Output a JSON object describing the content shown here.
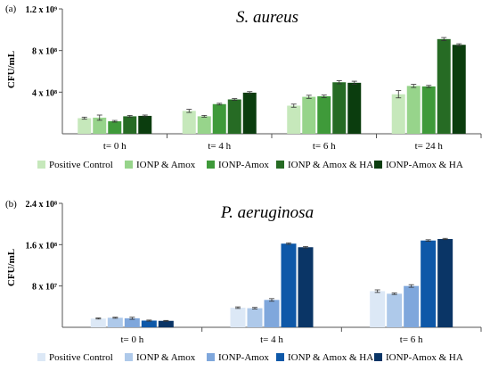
{
  "figure": {
    "panels_label": [
      "(a)",
      "(b)"
    ]
  },
  "chart_data": [
    {
      "type": "bar",
      "panel": "(a)",
      "title": "S. aureus",
      "xlabel": "",
      "ylabel": "CFU/mL",
      "ylim": [
        0,
        1200000000
      ],
      "yticks": [
        {
          "value": 400000000,
          "label": "4 x 10⁸"
        },
        {
          "value": 800000000,
          "label": "8 x 10⁸"
        },
        {
          "value": 1200000000,
          "label": "1.2 x 10⁹"
        }
      ],
      "categories": [
        "t= 0 h",
        "t= 4 h",
        "t= 6 h",
        "t= 24 h"
      ],
      "legend_position": "bottom",
      "series": [
        {
          "name": "Positive Control",
          "color": "#c6e8bb",
          "values": [
            150000000,
            220000000,
            270000000,
            380000000
          ],
          "errors": [
            10000000,
            15000000,
            15000000,
            35000000
          ]
        },
        {
          "name": "IONP & Amox",
          "color": "#97d48b",
          "values": [
            155000000,
            168000000,
            355000000,
            460000000
          ],
          "errors": [
            25000000,
            8000000,
            15000000,
            15000000
          ]
        },
        {
          "name": "IONP-Amox",
          "color": "#3f9a3a",
          "values": [
            120000000,
            285000000,
            360000000,
            455000000
          ],
          "errors": [
            8000000,
            8000000,
            12000000,
            10000000
          ]
        },
        {
          "name": "IONP & Amox & HA",
          "color": "#266b24",
          "values": [
            168000000,
            330000000,
            495000000,
            910000000
          ],
          "errors": [
            8000000,
            8000000,
            15000000,
            15000000
          ]
        },
        {
          "name": "IONP-Amox & HA",
          "color": "#0b3d0e",
          "values": [
            172000000,
            395000000,
            490000000,
            855000000
          ],
          "errors": [
            8000000,
            10000000,
            15000000,
            10000000
          ]
        }
      ]
    },
    {
      "type": "bar",
      "panel": "(b)",
      "title": "P. aeruginosa",
      "xlabel": "",
      "ylabel": "CFU/mL",
      "ylim": [
        0,
        240000000
      ],
      "yticks": [
        {
          "value": 80000000,
          "label": "8 x 10⁷"
        },
        {
          "value": 160000000,
          "label": "1.6 x 10⁸"
        },
        {
          "value": 240000000,
          "label": "2.4 x 10⁸"
        }
      ],
      "categories": [
        "t= 0 h",
        "t= 4 h",
        "t= 6 h"
      ],
      "legend_position": "bottom",
      "series": [
        {
          "name": "Positive Control",
          "color": "#dce8f6",
          "values": [
            17000000,
            38000000,
            70000000
          ],
          "errors": [
            1000000,
            1500000,
            2500000
          ]
        },
        {
          "name": "IONP & Amox",
          "color": "#aec9ea",
          "values": [
            18500000,
            37000000,
            65000000
          ],
          "errors": [
            1000000,
            1500000,
            1500000
          ]
        },
        {
          "name": "IONP-Amox",
          "color": "#7fa7dc",
          "values": [
            17500000,
            53000000,
            80000000
          ],
          "errors": [
            2000000,
            2500000,
            2500000
          ]
        },
        {
          "name": "IONP & Amox & HA",
          "color": "#0e58a8",
          "values": [
            13000000,
            162000000,
            168000000
          ],
          "errors": [
            1000000,
            1500000,
            1500000
          ]
        },
        {
          "name": "IONP-Amox & HA",
          "color": "#0a3566",
          "values": [
            12500000,
            155000000,
            171000000
          ],
          "errors": [
            800000,
            1500000,
            1200000
          ]
        }
      ]
    }
  ]
}
